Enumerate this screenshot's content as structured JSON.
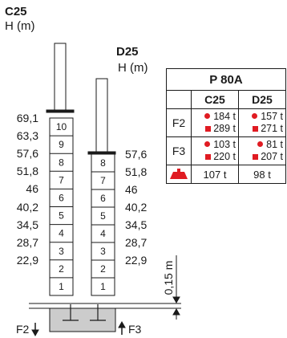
{
  "mast_c25": {
    "title": "C25",
    "unit": "H (m)",
    "heights": [
      "69,1",
      "63,3",
      "57,6",
      "51,8",
      "46",
      "40,2",
      "34,5",
      "28,7",
      "22,9"
    ],
    "segments": [
      "10",
      "9",
      "8",
      "7",
      "6",
      "5",
      "4",
      "3",
      "2",
      "1"
    ]
  },
  "mast_d25": {
    "title": "D25",
    "unit": "H (m)",
    "heights": [
      "57,6",
      "51,8",
      "46",
      "40,2",
      "34,5",
      "28,7",
      "22,9"
    ],
    "segments": [
      "8",
      "7",
      "6",
      "5",
      "4",
      "3",
      "2",
      "1"
    ]
  },
  "base": {
    "dimension": "0,15 m",
    "force_left": "F2",
    "force_right": "F3"
  },
  "table": {
    "title": "P 80A",
    "columns": [
      "C25",
      "D25"
    ],
    "rows": [
      {
        "label": "F2",
        "c25": [
          "184 t",
          "289 t"
        ],
        "d25": [
          "157 t",
          "271 t"
        ]
      },
      {
        "label": "F3",
        "c25": [
          "103 t",
          "220 t"
        ],
        "d25": [
          "81 t",
          "207 t"
        ]
      }
    ],
    "weight_row": {
      "icon": "weight-icon",
      "c25": "107 t",
      "d25": "98 t"
    }
  },
  "colors": {
    "accent": "#e01b22",
    "base": "#cccccc",
    "line": "#1a1a1a"
  }
}
